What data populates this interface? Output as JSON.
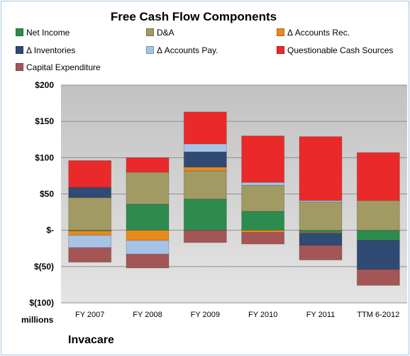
{
  "chart_data": {
    "type": "bar",
    "stacked": true,
    "title": "Free Cash Flow Components",
    "categories": [
      "FY 2007",
      "FY 2008",
      "FY 2009",
      "FY 2010",
      "FY 2011",
      "TTM 6-2012"
    ],
    "ytick_labels": [
      "$200",
      "$150",
      "$100",
      "$50",
      "$-",
      "$(50)",
      "$(100)"
    ],
    "ylim": [
      -100,
      200
    ],
    "units_label": "millions",
    "company": "Invacare",
    "grid": true,
    "legend_position": "top",
    "series": [
      {
        "name": "Net Income",
        "color": "#2e8b4e",
        "values": [
          -1,
          36,
          43,
          26,
          -3,
          -14
        ]
      },
      {
        "name": "D&A",
        "color": "#a29a63",
        "values": [
          45,
          44,
          39,
          36,
          39,
          41
        ]
      },
      {
        "name": "Δ Accounts Rec.",
        "color": "#e98a1e",
        "values": [
          -6,
          -14,
          5,
          -3,
          -1,
          0
        ]
      },
      {
        "name": "Δ Inventories",
        "color": "#2f4a73",
        "values": [
          14,
          0,
          21,
          0,
          -17,
          -40
        ]
      },
      {
        "name": "Δ Accounts Pay.",
        "color": "#a7c3e6",
        "values": [
          -17,
          -19,
          11,
          4,
          2,
          0
        ]
      },
      {
        "name": "Questionable Cash Sources",
        "color": "#ea2a2a",
        "values": [
          37,
          20,
          44,
          64,
          88,
          66
        ]
      },
      {
        "name": "Capital Expenditure",
        "color": "#a45656",
        "values": [
          -20,
          -19,
          -17,
          -16,
          -20,
          -22
        ]
      }
    ]
  }
}
